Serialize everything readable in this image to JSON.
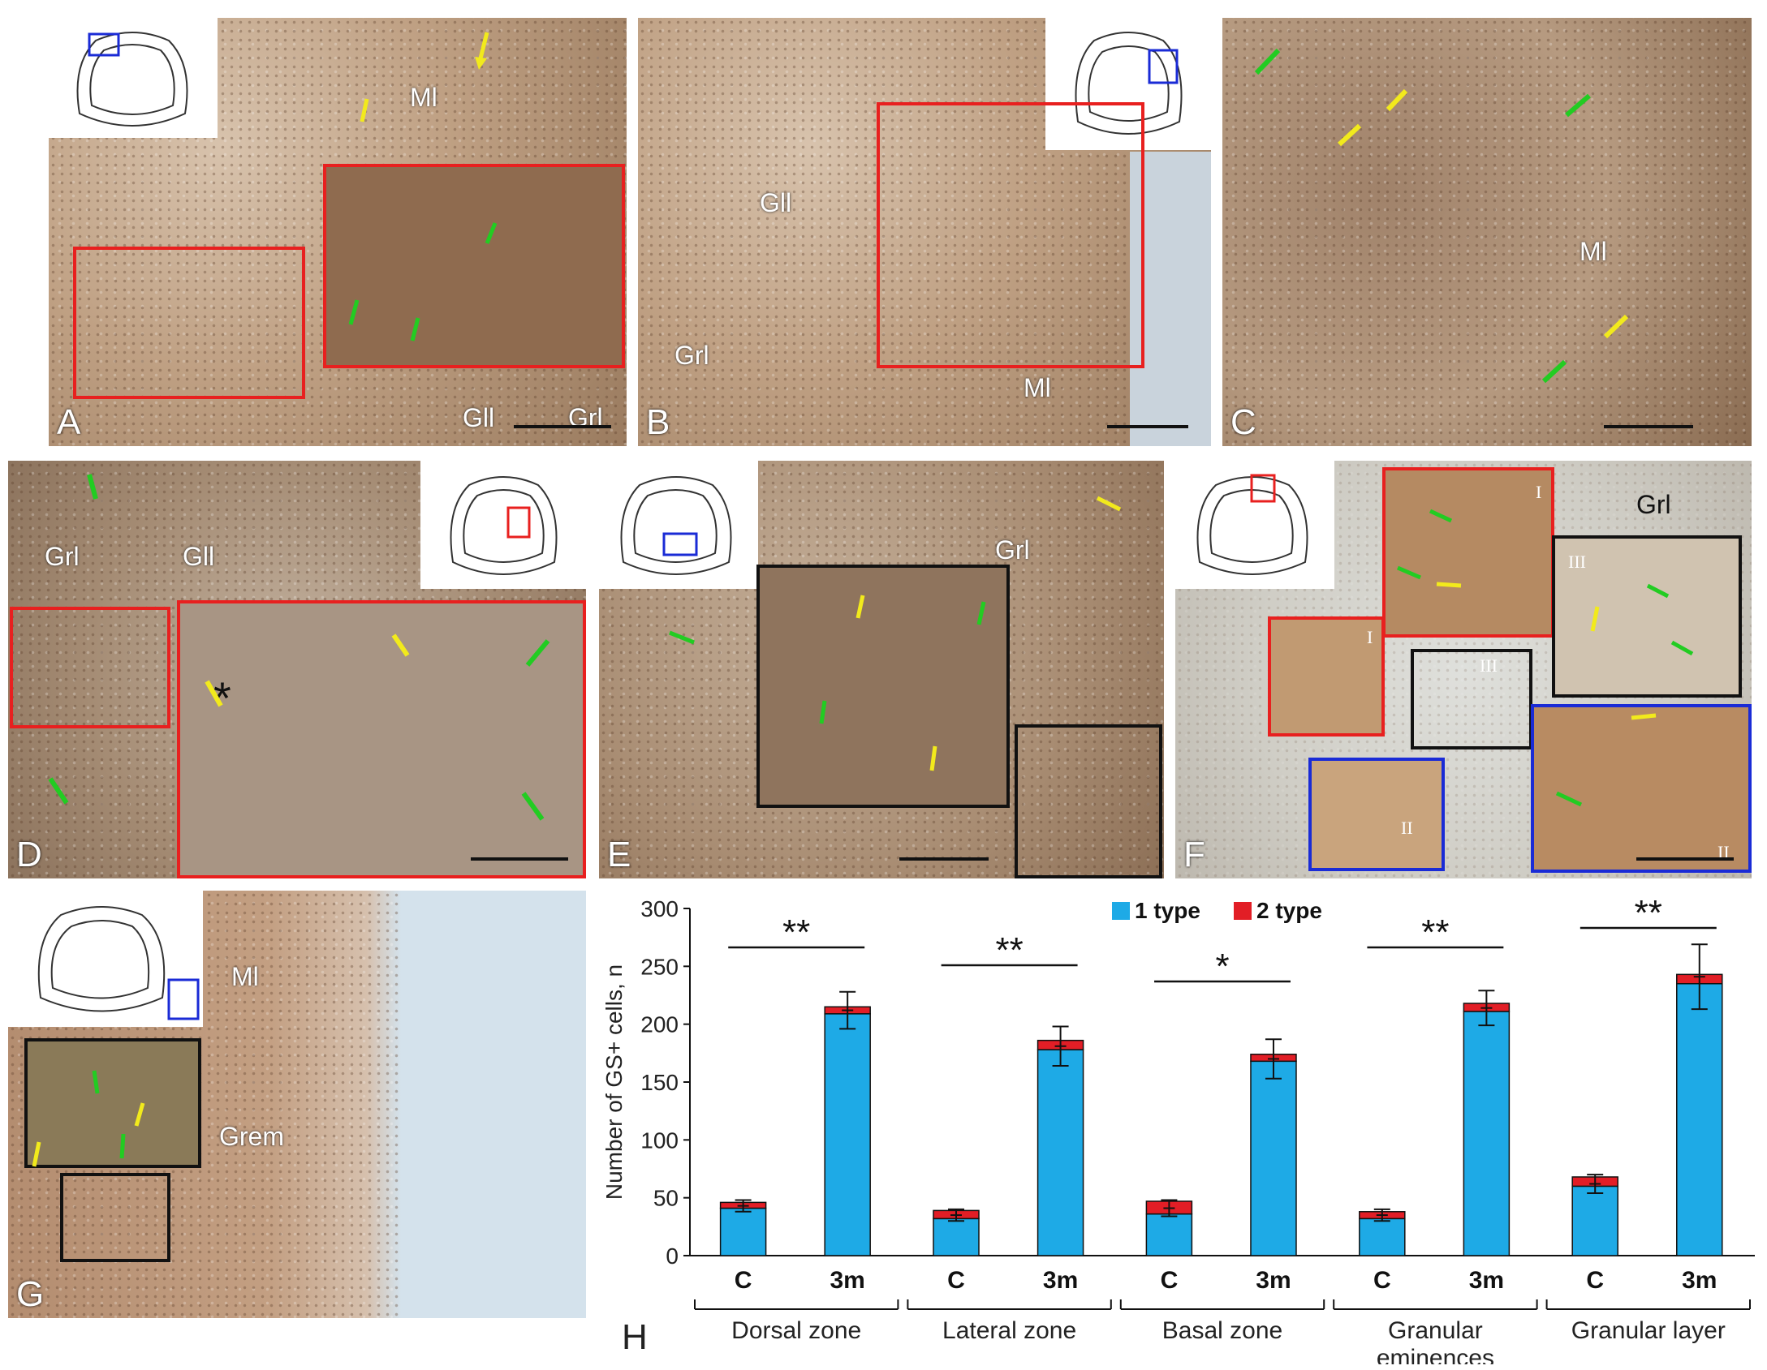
{
  "panels": {
    "A": {
      "letter": "A",
      "labels": [
        "Ml",
        "Gll",
        "Grl"
      ]
    },
    "B": {
      "letter": "B",
      "labels": [
        "Gll",
        "Grl",
        "Ml"
      ]
    },
    "C": {
      "letter": "C",
      "labels": [
        "Ml"
      ]
    },
    "D": {
      "letter": "D",
      "labels": [
        "Grl",
        "Gll"
      ],
      "asterisk": "*"
    },
    "E": {
      "letter": "E",
      "labels": [
        "Grl"
      ]
    },
    "F": {
      "letter": "F",
      "labels": [
        "Grl"
      ],
      "roman": [
        "I",
        "I",
        "III",
        "III",
        "II",
        "II"
      ]
    },
    "G": {
      "letter": "G",
      "labels": [
        "Ml",
        "Grem"
      ]
    }
  },
  "colors": {
    "type1": "#1eaae6",
    "type2": "#e21e26",
    "red_box": "#e8201f",
    "blue_box": "#1a2bd6",
    "black_box": "#111111",
    "green_arrow": "#22cc22",
    "yellow_arrow": "#f2ea1c"
  },
  "chart_data": {
    "panel_letter": "H",
    "type": "bar",
    "stacked": true,
    "ylabel": "Number of GS+  cells, n",
    "ylim": [
      0,
      300
    ],
    "yticks": [
      0,
      50,
      100,
      150,
      200,
      250,
      300
    ],
    "legend": [
      "1 type",
      "2 type"
    ],
    "legend_placement": "top-center",
    "groups": [
      "Dorsal zone",
      "Lateral zone",
      "Basal zone",
      "Granular eminences",
      "Granular layer"
    ],
    "categories": [
      "C",
      "3m",
      "C",
      "3m",
      "C",
      "3m",
      "C",
      "3m",
      "C",
      "3m"
    ],
    "series": [
      {
        "name": "1 type",
        "values": [
          41,
          209,
          32,
          178,
          36,
          168,
          32,
          211,
          60,
          235
        ]
      },
      {
        "name": "2 type",
        "values": [
          5,
          6,
          7,
          8,
          11,
          6,
          6,
          7,
          8,
          8
        ]
      }
    ],
    "error_bars": {
      "centers": [
        43,
        212,
        35,
        181,
        41,
        170,
        35,
        214,
        62,
        241
      ],
      "half_widths": [
        5,
        16,
        5,
        17,
        7,
        17,
        5,
        15,
        8,
        28
      ]
    },
    "significance": [
      {
        "group": "Dorsal zone",
        "stars": "**"
      },
      {
        "group": "Lateral zone",
        "stars": "**"
      },
      {
        "group": "Basal zone",
        "stars": "*"
      },
      {
        "group": "Granular eminences",
        "stars": "**"
      },
      {
        "group": "Granular layer",
        "stars": "**"
      }
    ]
  }
}
